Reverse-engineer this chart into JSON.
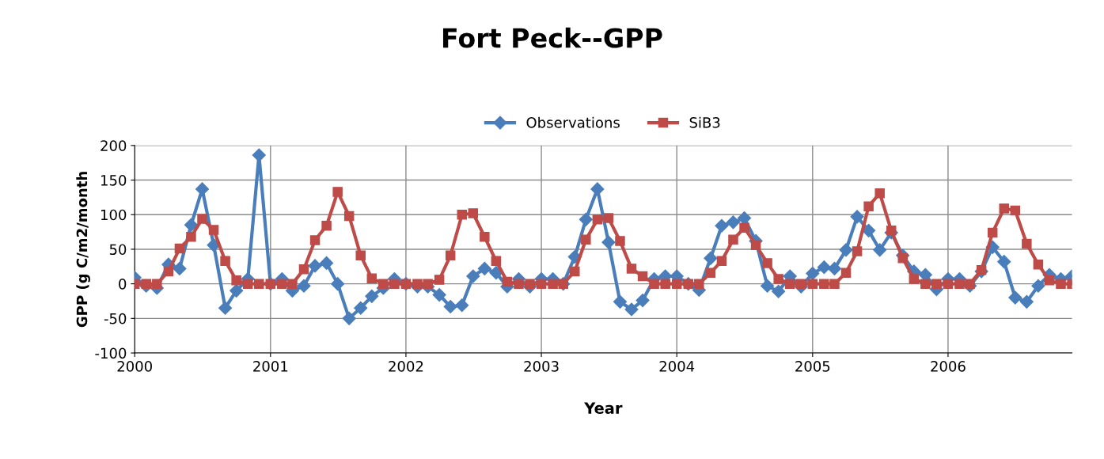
{
  "chart_data": {
    "type": "line",
    "title": "Fort Peck--GPP",
    "xlabel": "Year",
    "ylabel": "GPP (g C/m2/month",
    "x": [
      "2000-01",
      "2000-02",
      "2000-03",
      "2000-04",
      "2000-05",
      "2000-06",
      "2000-07",
      "2000-08",
      "2000-09",
      "2000-10",
      "2000-11",
      "2000-12",
      "2001-01",
      "2001-02",
      "2001-03",
      "2001-04",
      "2001-05",
      "2001-06",
      "2001-07",
      "2001-08",
      "2001-09",
      "2001-10",
      "2001-11",
      "2001-12",
      "2002-01",
      "2002-02",
      "2002-03",
      "2002-04",
      "2002-05",
      "2002-06",
      "2002-07",
      "2002-08",
      "2002-09",
      "2002-10",
      "2002-11",
      "2002-12",
      "2003-01",
      "2003-02",
      "2003-03",
      "2003-04",
      "2003-05",
      "2003-06",
      "2003-07",
      "2003-08",
      "2003-09",
      "2003-10",
      "2003-11",
      "2003-12",
      "2004-01",
      "2004-02",
      "2004-03",
      "2004-04",
      "2004-05",
      "2004-06",
      "2004-07",
      "2004-08",
      "2004-09",
      "2004-10",
      "2004-11",
      "2004-12",
      "2005-01",
      "2005-02",
      "2005-03",
      "2005-04",
      "2005-05",
      "2005-06",
      "2005-07",
      "2005-08",
      "2005-09",
      "2005-10",
      "2005-11",
      "2005-12",
      "2006-01",
      "2006-02",
      "2006-03",
      "2006-04",
      "2006-05",
      "2006-06",
      "2006-07",
      "2006-08",
      "2006-09",
      "2006-10",
      "2006-11",
      "2006-12"
    ],
    "series": [
      {
        "name": "Observations",
        "color": "#4a7ebb",
        "marker": "diamond",
        "values": [
          9,
          -3,
          -6,
          28,
          22,
          85,
          137,
          56,
          -35,
          -10,
          7,
          186,
          0,
          7,
          -10,
          -3,
          26,
          30,
          0,
          -50,
          -35,
          -18,
          -6,
          7,
          0,
          -4,
          -4,
          -16,
          -33,
          -31,
          11,
          22,
          16,
          -4,
          7,
          -4,
          7,
          7,
          0,
          39,
          93,
          137,
          60,
          -26,
          -37,
          -24,
          7,
          11,
          11,
          0,
          -9,
          37,
          84,
          89,
          95,
          62,
          -3,
          -11,
          11,
          -4,
          15,
          24,
          22,
          49,
          97,
          77,
          49,
          74,
          41,
          18,
          13,
          -8,
          7,
          7,
          -3,
          18,
          53,
          32,
          -20,
          -26,
          -3,
          13,
          7,
          11
        ]
      },
      {
        "name": "SiB3",
        "color": "#be4b48",
        "marker": "square",
        "values": [
          0,
          0,
          0,
          18,
          51,
          68,
          94,
          78,
          33,
          5,
          0,
          0,
          0,
          0,
          0,
          21,
          63,
          84,
          133,
          98,
          41,
          8,
          0,
          0,
          0,
          0,
          0,
          6,
          41,
          100,
          102,
          68,
          33,
          3,
          0,
          0,
          0,
          0,
          0,
          18,
          64,
          93,
          95,
          62,
          22,
          11,
          0,
          0,
          0,
          0,
          0,
          16,
          33,
          64,
          81,
          56,
          30,
          7,
          0,
          0,
          0,
          0,
          0,
          16,
          47,
          112,
          131,
          77,
          37,
          7,
          0,
          0,
          0,
          0,
          0,
          20,
          74,
          109,
          106,
          58,
          28,
          5,
          0,
          0
        ]
      }
    ],
    "xlim": [
      "2000-01",
      "2006-12"
    ],
    "xticks": [
      {
        "value": "2000-01",
        "label": "2000"
      },
      {
        "value": "2001-01",
        "label": "2001"
      },
      {
        "value": "2002-01",
        "label": "2002"
      },
      {
        "value": "2003-01",
        "label": "2003"
      },
      {
        "value": "2004-01",
        "label": "2004"
      },
      {
        "value": "2005-01",
        "label": "2005"
      },
      {
        "value": "2006-01",
        "label": "2006"
      }
    ],
    "ylim": [
      -100,
      200
    ],
    "yticks": [
      -100,
      -50,
      0,
      50,
      100,
      150,
      200
    ],
    "grid": true,
    "legend": "top",
    "line_style": "solid"
  }
}
